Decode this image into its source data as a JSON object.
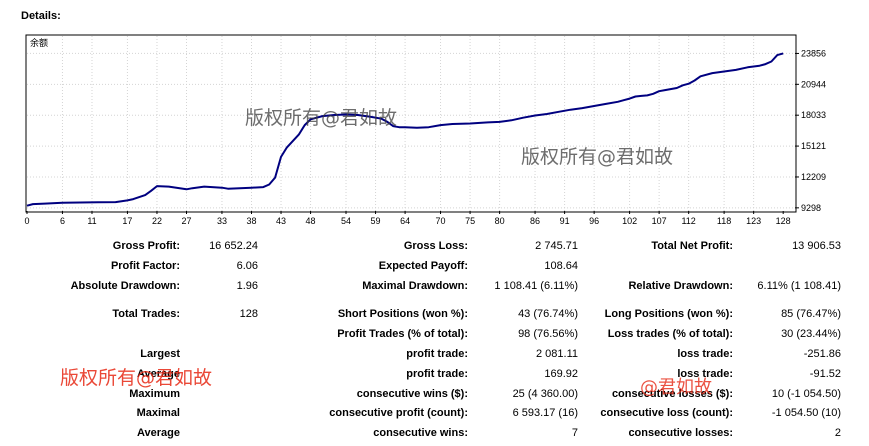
{
  "header": {
    "title": "Details:"
  },
  "chart_data": {
    "type": "line",
    "title": "余额",
    "x_ticks": [
      0,
      6,
      11,
      17,
      22,
      27,
      33,
      38,
      43,
      48,
      54,
      59,
      64,
      70,
      75,
      80,
      86,
      91,
      96,
      102,
      107,
      112,
      118,
      123,
      128
    ],
    "y_ticks": [
      9298,
      12209,
      15121,
      18033,
      20944,
      23856
    ],
    "xlim": [
      0,
      130
    ],
    "ylim": [
      9000,
      25500
    ],
    "grid": true,
    "series": [
      {
        "color": "#000080",
        "x": [
          0,
          1,
          3,
          6,
          9,
          12,
          15,
          17,
          18,
          20,
          21,
          22,
          24,
          27,
          28,
          30,
          33,
          34,
          36,
          38,
          40,
          41,
          42,
          43,
          44,
          46,
          47,
          48,
          50,
          52,
          54,
          56,
          58,
          60,
          61,
          62,
          63,
          64,
          66,
          68,
          70,
          72,
          75,
          78,
          80,
          82,
          84,
          86,
          88,
          90,
          92,
          94,
          96,
          98,
          100,
          101,
          102,
          103,
          104,
          105,
          106,
          107,
          108,
          110,
          111,
          112,
          113,
          114,
          116,
          118,
          120,
          122,
          124,
          125,
          126,
          127,
          128
        ],
        "y": [
          9500,
          9650,
          9700,
          9780,
          9800,
          9820,
          9840,
          10000,
          10120,
          10500,
          10900,
          11350,
          11300,
          11050,
          11150,
          11300,
          11200,
          11100,
          11150,
          11200,
          11250,
          11500,
          12150,
          14100,
          15000,
          16200,
          17100,
          17650,
          17950,
          18050,
          18100,
          18050,
          17900,
          17700,
          17400,
          17000,
          16900,
          16900,
          16850,
          16900,
          17100,
          17200,
          17250,
          17350,
          17400,
          17550,
          17800,
          18000,
          18150,
          18350,
          18550,
          18700,
          18900,
          19100,
          19300,
          19450,
          19600,
          19800,
          19850,
          19900,
          20050,
          20300,
          20400,
          20600,
          20850,
          21000,
          21300,
          21700,
          22000,
          22150,
          22300,
          22550,
          22700,
          22850,
          23100,
          23700,
          23856
        ]
      }
    ]
  },
  "stats": {
    "col1": [
      {
        "label": "Gross Profit:",
        "value": "16 652.24"
      },
      {
        "label": "Profit Factor:",
        "value": "6.06"
      },
      {
        "label": "Absolute Drawdown:",
        "value": "1.96"
      },
      {
        "label": "Total Trades:",
        "value": "128"
      },
      {
        "label": "Largest",
        "value": ""
      },
      {
        "label": "Average",
        "value": ""
      },
      {
        "label": "Maximum",
        "value": ""
      },
      {
        "label": "Maximal",
        "value": ""
      },
      {
        "label": "Average",
        "value": ""
      }
    ],
    "col2": [
      {
        "label": "Gross Loss:",
        "value": "2 745.71"
      },
      {
        "label": "Expected Payoff:",
        "value": "108.64"
      },
      {
        "label": "Maximal Drawdown:",
        "value": "1 108.41 (6.11%)"
      },
      {
        "label": "Short Positions (won %):",
        "value": "43 (76.74%)"
      },
      {
        "label": "Profit Trades (% of total):",
        "value": "98 (76.56%)"
      },
      {
        "label": "profit trade:",
        "value": "2 081.11"
      },
      {
        "label": "profit trade:",
        "value": "169.92"
      },
      {
        "label": "consecutive wins ($):",
        "value": "25 (4 360.00)"
      },
      {
        "label": "consecutive profit (count):",
        "value": "6 593.17 (16)"
      },
      {
        "label": "consecutive wins:",
        "value": "7"
      }
    ],
    "col3": [
      {
        "label": "Total Net Profit:",
        "value": "13 906.53"
      },
      {
        "label": "Relative Drawdown:",
        "value": "6.11% (1 108.41)"
      },
      {
        "label": "Long Positions (won %):",
        "value": "85 (76.47%)"
      },
      {
        "label": "Loss trades (% of total):",
        "value": "30 (23.44%)"
      },
      {
        "label": "loss trade:",
        "value": "-251.86"
      },
      {
        "label": "loss trade:",
        "value": "-91.52"
      },
      {
        "label": "consecutive losses ($):",
        "value": "10 (-1 054.50)"
      },
      {
        "label": "consecutive loss (count):",
        "value": "-1 054.50 (10)"
      },
      {
        "label": "consecutive losses:",
        "value": "2"
      }
    ]
  },
  "watermarks": {
    "w1": "版权所有@君如故",
    "w2": "版权所有@君如故",
    "w3": "版权所有@君如故",
    "w4": "@君如故"
  }
}
